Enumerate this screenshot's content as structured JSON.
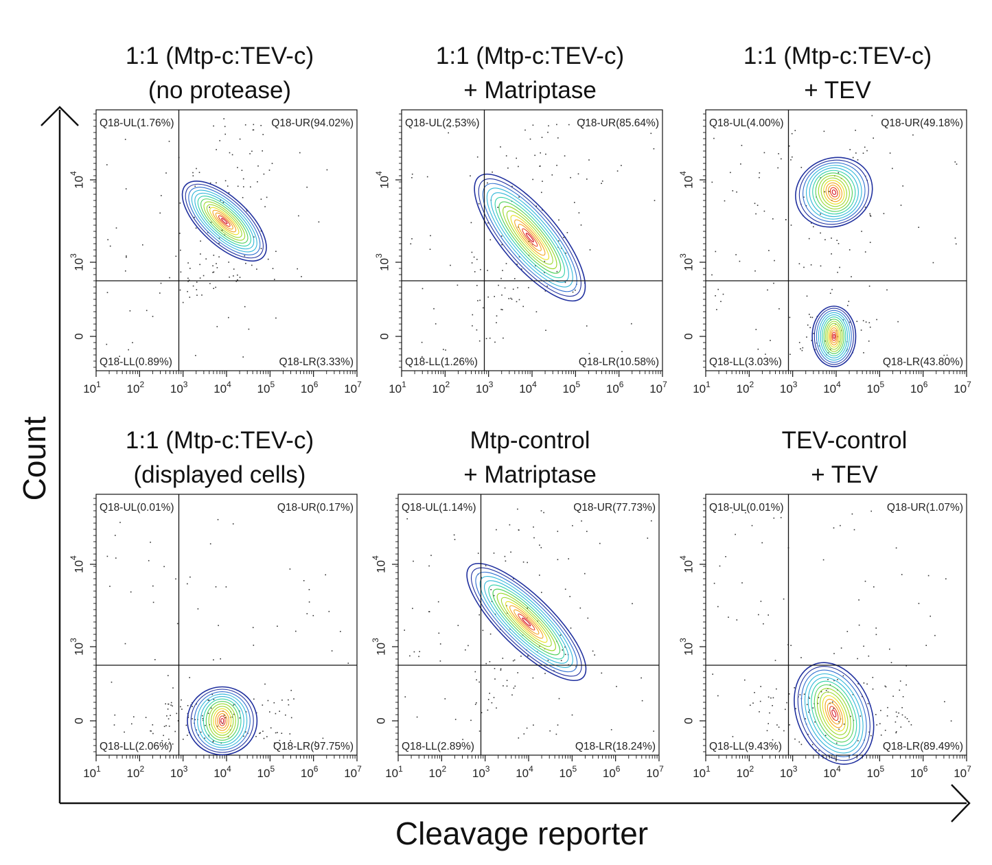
{
  "figure": {
    "x_axis_label": "Cleavage reporter",
    "y_axis_label": "Count"
  },
  "colors": {
    "axis": "#111111",
    "dots": "#333333",
    "contour_outer": "#1f2f9e",
    "contour_palette": [
      "#1f2f9e",
      "#2f6fd0",
      "#2fb6d8",
      "#2fd0a8",
      "#4fd05a",
      "#9ad82a",
      "#e8e020",
      "#f3a21a",
      "#e8401f",
      "#d01020"
    ]
  },
  "chart_data": [
    {
      "type": "scatter",
      "subtype": "flow-cytometry-contour",
      "title_lines": [
        "1:1 (Mtp-c:TEV-c)",
        "(no protease)"
      ],
      "x_scale": "log",
      "xlim": [
        10,
        10000000
      ],
      "x_ticks": [
        "1",
        "2",
        "3",
        "4",
        "5",
        "6",
        "7"
      ],
      "y_ticks": [
        "0",
        "3",
        "4"
      ],
      "gate": {
        "x": 800,
        "y": 500
      },
      "quadrants": {
        "UL": "Q18-UL(1.76%)",
        "UR": "Q18-UR(94.02%)",
        "LL": "Q18-LL(0.89%)",
        "LR": "Q18-LR(3.33%)"
      },
      "populations": [
        {
          "center_log_x": 3.95,
          "center_y_level": 3.5,
          "spread_log_x": 0.55,
          "spread_y": 0.7,
          "tilt": 0.9
        }
      ]
    },
    {
      "type": "scatter",
      "subtype": "flow-cytometry-contour",
      "title_lines": [
        "1:1 (Mtp-c:TEV-c)",
        "+ Matriptase"
      ],
      "x_scale": "log",
      "xlim": [
        10,
        10000000
      ],
      "x_ticks": [
        "1",
        "2",
        "3",
        "4",
        "5",
        "6",
        "7"
      ],
      "y_ticks": [
        "0",
        "3",
        "4"
      ],
      "gate": {
        "x": 800,
        "y": 500
      },
      "quadrants": {
        "UL": "Q18-UL(2.53%)",
        "UR": "Q18-UR(85.64%)",
        "LL": "Q18-LL(1.26%)",
        "LR": "Q18-LR(10.58%)"
      },
      "populations": [
        {
          "center_log_x": 3.95,
          "center_y_level": 3.3,
          "spread_log_x": 0.65,
          "spread_y": 1.05,
          "tilt": 0.7
        }
      ]
    },
    {
      "type": "scatter",
      "subtype": "flow-cytometry-contour",
      "title_lines": [
        "1:1 (Mtp-c:TEV-c)",
        "+ TEV"
      ],
      "x_scale": "log",
      "xlim": [
        10,
        10000000
      ],
      "x_ticks": [
        "1",
        "2",
        "3",
        "4",
        "5",
        "6",
        "7"
      ],
      "y_ticks": [
        "0",
        "3",
        "4"
      ],
      "gate": {
        "x": 800,
        "y": 500
      },
      "quadrants": {
        "UL": "Q18-UL(4.00%)",
        "UR": "Q18-UR(49.18%)",
        "LL": "Q18-LL(3.03%)",
        "LR": "Q18-LR(43.80%)"
      },
      "populations": [
        {
          "center_log_x": 3.95,
          "center_y_level": 3.85,
          "spread_log_x": 0.9,
          "spread_y": 0.45,
          "tilt": 0.35
        },
        {
          "center_log_x": 3.95,
          "center_y_level": 0.0,
          "spread_log_x": 0.5,
          "spread_y": 0.4,
          "tilt": 0.0
        }
      ]
    },
    {
      "type": "scatter",
      "subtype": "flow-cytometry-contour",
      "title_lines": [
        "1:1 (Mtp-c:TEV-c)",
        "(displayed cells)"
      ],
      "x_scale": "log",
      "xlim": [
        10,
        10000000
      ],
      "x_ticks": [
        "1",
        "2",
        "3",
        "4",
        "5",
        "6",
        "7"
      ],
      "y_ticks": [
        "0",
        "3",
        "4"
      ],
      "gate": {
        "x": 800,
        "y": 500
      },
      "quadrants": {
        "UL": "Q18-UL(0.01%)",
        "UR": "Q18-UR(0.17%)",
        "LL": "Q18-LL(2.06%)",
        "LR": "Q18-LR(97.75%)"
      },
      "populations": [
        {
          "center_log_x": 3.9,
          "center_y_level": 0.0,
          "spread_log_x": 0.8,
          "spread_y": 0.45,
          "tilt": 0.0
        }
      ]
    },
    {
      "type": "scatter",
      "subtype": "flow-cytometry-contour",
      "title_lines": [
        "Mtp-control",
        "+ Matriptase"
      ],
      "x_scale": "log",
      "xlim": [
        10,
        10000000
      ],
      "x_ticks": [
        "1",
        "2",
        "3",
        "4",
        "5",
        "6",
        "7"
      ],
      "y_ticks": [
        "0",
        "3",
        "4"
      ],
      "gate": {
        "x": 800,
        "y": 500
      },
      "quadrants": {
        "UL": "Q18-UL(1.14%)",
        "UR": "Q18-UR(77.73%)",
        "LL": "Q18-LL(2.89%)",
        "LR": "Q18-LR(18.24%)"
      },
      "populations": [
        {
          "center_log_x": 3.95,
          "center_y_level": 3.3,
          "spread_log_x": 0.6,
          "spread_y": 1.05,
          "tilt": 0.85
        }
      ]
    },
    {
      "type": "scatter",
      "subtype": "flow-cytometry-contour",
      "title_lines": [
        "TEV-control",
        "+ TEV"
      ],
      "x_scale": "log",
      "xlim": [
        10,
        10000000
      ],
      "x_ticks": [
        "1",
        "2",
        "3",
        "4",
        "5",
        "6",
        "7"
      ],
      "y_ticks": [
        "0",
        "3",
        "4"
      ],
      "gate": {
        "x": 800,
        "y": 500
      },
      "quadrants": {
        "UL": "Q18-UL(0.01%)",
        "UR": "Q18-UR(1.07%)",
        "LL": "Q18-LL(9.43%)",
        "LR": "Q18-LR(89.49%)"
      },
      "populations": [
        {
          "center_log_x": 3.95,
          "center_y_level": 0.3,
          "spread_log_x": 0.85,
          "spread_y": 0.7,
          "tilt": 0.35
        }
      ]
    }
  ]
}
